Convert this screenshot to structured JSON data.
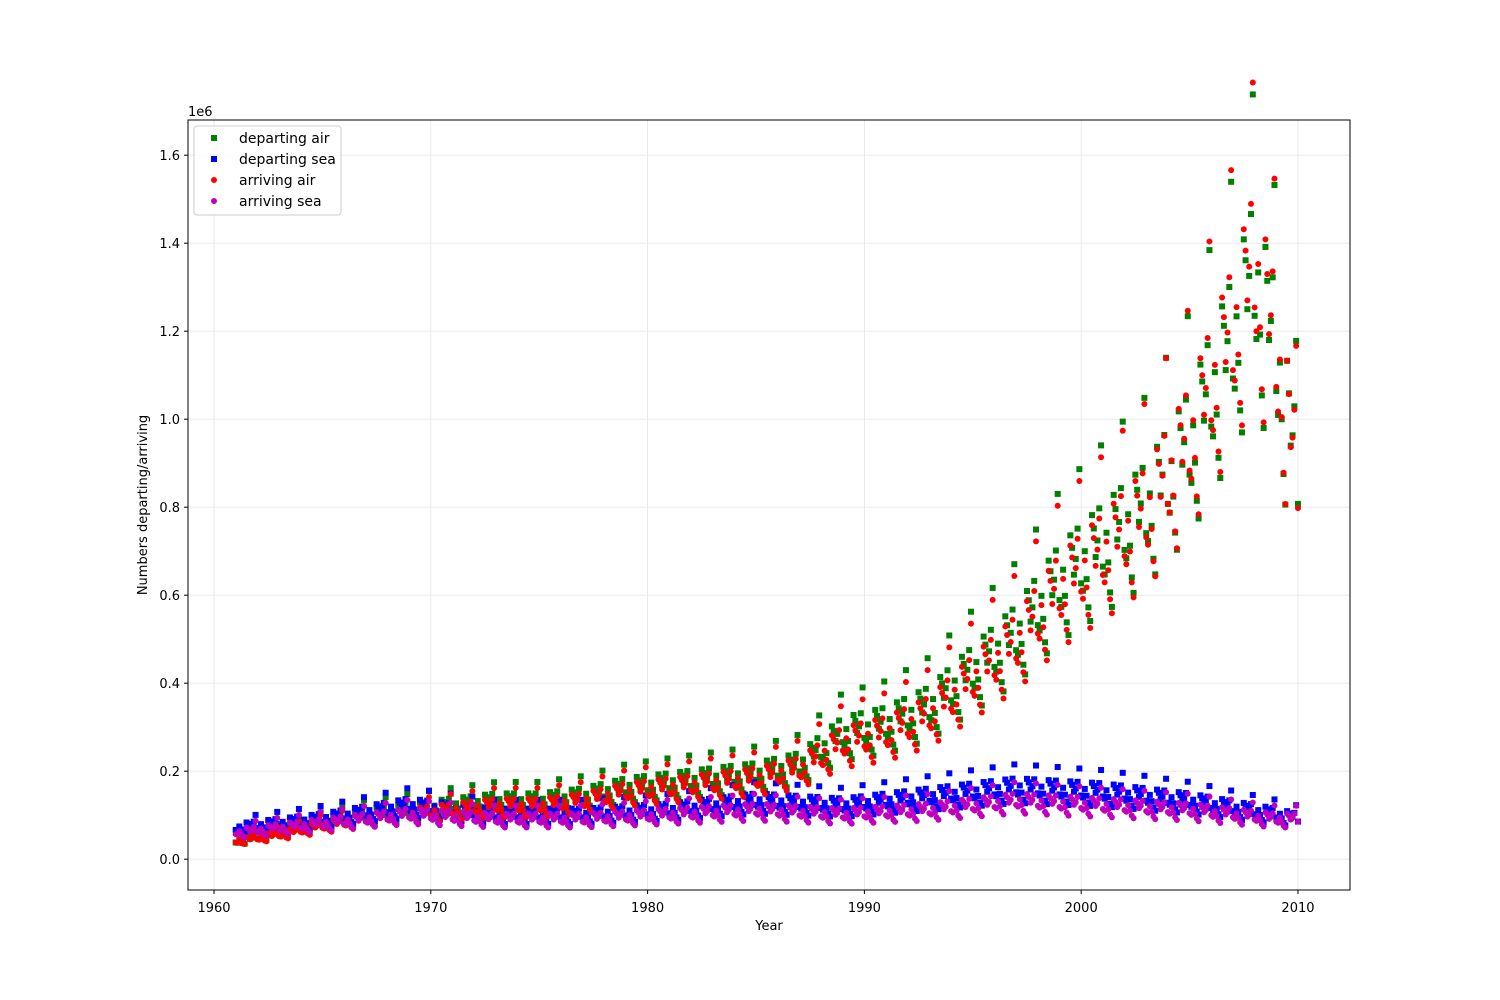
{
  "chart_data": {
    "type": "scatter",
    "title": "",
    "xlabel": "Year",
    "ylabel": "Numbers departing/arriving",
    "y_offset_label": "1e6",
    "xlim": [
      1958.8,
      2012.4
    ],
    "ylim": [
      -0.07,
      1.68
    ],
    "y_unit": 1000000,
    "x_ticks": [
      1960,
      1970,
      1980,
      1990,
      2000,
      2010
    ],
    "y_ticks": [
      0.0,
      0.2,
      0.4,
      0.6,
      0.8,
      1.0,
      1.2,
      1.4,
      1.6
    ],
    "grid": true,
    "legend_position": "upper-left",
    "monthly_pattern": [
      0.95,
      0.92,
      1.05,
      0.95,
      0.85,
      0.8,
      1.15,
      1.1,
      1.0,
      1.05,
      1.15,
      1.35
    ],
    "series": [
      {
        "name": "departing air",
        "color": "#008000",
        "marker": "square",
        "x": [
          1961,
          1963,
          1965,
          1967,
          1969,
          1971,
          1973,
          1975,
          1977,
          1979,
          1981,
          1983,
          1985,
          1987,
          1989,
          1991,
          1993,
          1995,
          1997,
          1999,
          2001,
          2003,
          2005,
          2007,
          2008,
          2009,
          2010
        ],
        "y": [
          0.04,
          0.06,
          0.08,
          0.1,
          0.11,
          0.12,
          0.13,
          0.13,
          0.14,
          0.16,
          0.17,
          0.18,
          0.19,
          0.21,
          0.28,
          0.3,
          0.34,
          0.42,
          0.5,
          0.62,
          0.7,
          0.78,
          0.92,
          1.15,
          1.3,
          1.12,
          0.85
        ]
      },
      {
        "name": "departing sea",
        "color": "#0000ff",
        "marker": "square",
        "x": [
          1961,
          1965,
          1969,
          1973,
          1977,
          1981,
          1985,
          1989,
          1993,
          1997,
          2001,
          2005,
          2009,
          2010
        ],
        "y": [
          0.07,
          0.09,
          0.12,
          0.1,
          0.1,
          0.11,
          0.13,
          0.12,
          0.14,
          0.16,
          0.15,
          0.13,
          0.1,
          0.09
        ]
      },
      {
        "name": "arriving air",
        "color": "#ff0000",
        "marker": "circle",
        "x": [
          1961,
          1963,
          1965,
          1967,
          1969,
          1971,
          1973,
          1975,
          1977,
          1979,
          1981,
          1983,
          1985,
          1987,
          1989,
          1991,
          1993,
          1995,
          1997,
          1999,
          2001,
          2003,
          2005,
          2007,
          2008,
          2009,
          2010
        ],
        "y": [
          0.04,
          0.055,
          0.075,
          0.09,
          0.1,
          0.11,
          0.12,
          0.12,
          0.13,
          0.15,
          0.16,
          0.17,
          0.18,
          0.2,
          0.26,
          0.28,
          0.32,
          0.4,
          0.48,
          0.6,
          0.68,
          0.77,
          0.93,
          1.17,
          1.32,
          1.13,
          0.84
        ]
      },
      {
        "name": "arriving sea",
        "color": "#bf00bf",
        "marker": "circle",
        "x": [
          1961,
          1965,
          1969,
          1973,
          1977,
          1981,
          1985,
          1989,
          1993,
          1997,
          2001,
          2005,
          2009,
          2010
        ],
        "y": [
          0.06,
          0.08,
          0.1,
          0.09,
          0.09,
          0.1,
          0.11,
          0.1,
          0.11,
          0.13,
          0.12,
          0.11,
          0.09,
          0.09
        ]
      }
    ]
  }
}
